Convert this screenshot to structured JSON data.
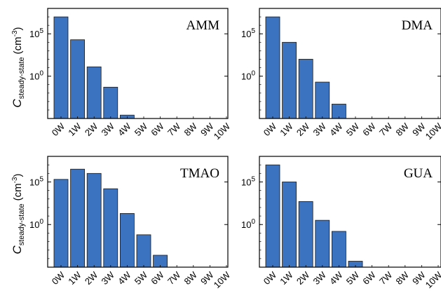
{
  "figure": {
    "ylabel_main": "C",
    "ylabel_sub": "steady-state",
    "ylabel_unit": "(cm",
    "ylabel_unit_exp": "-3",
    "ylabel_unit_close": ")"
  },
  "chart_data": [
    {
      "type": "bar",
      "panel_label": "AMM",
      "categories": [
        "0W",
        "1W",
        "2W",
        "3W",
        "4W",
        "5W",
        "6W",
        "7W",
        "8W",
        "9W",
        "10W"
      ],
      "y_scale": "log",
      "y_ticks": [
        {
          "exp": 5,
          "label_base": "10",
          "label_exp": "5"
        },
        {
          "exp": 0,
          "label_base": "10",
          "label_exp": "0"
        }
      ],
      "ylim_log10": [
        -5,
        8
      ],
      "log10_values": [
        7.0,
        4.3,
        1.1,
        -1.3,
        -4.6,
        null,
        null,
        null,
        null,
        null,
        null
      ],
      "bar_color": "#3c73c0"
    },
    {
      "type": "bar",
      "panel_label": "DMA",
      "categories": [
        "0W",
        "1W",
        "2W",
        "3W",
        "4W",
        "5W",
        "6W",
        "7W",
        "8W",
        "9W",
        "10W"
      ],
      "y_scale": "log",
      "y_ticks": [
        {
          "exp": 5,
          "label_base": "10",
          "label_exp": "5"
        },
        {
          "exp": 0,
          "label_base": "10",
          "label_exp": "0"
        }
      ],
      "ylim_log10": [
        -5,
        8
      ],
      "log10_values": [
        7.0,
        4.0,
        2.0,
        -0.7,
        -3.3,
        null,
        null,
        null,
        null,
        null,
        null
      ],
      "bar_color": "#3c73c0"
    },
    {
      "type": "bar",
      "panel_label": "TMAO",
      "categories": [
        "0W",
        "1W",
        "2W",
        "3W",
        "4W",
        "5W",
        "6W",
        "7W",
        "8W",
        "9W",
        "10W"
      ],
      "y_scale": "log",
      "y_ticks": [
        {
          "exp": 5,
          "label_base": "10",
          "label_exp": "5"
        },
        {
          "exp": 0,
          "label_base": "10",
          "label_exp": "0"
        }
      ],
      "ylim_log10": [
        -5,
        8
      ],
      "log10_values": [
        5.3,
        6.5,
        6.0,
        4.2,
        1.3,
        -1.2,
        -3.6,
        null,
        null,
        null,
        null
      ],
      "bar_color": "#3c73c0"
    },
    {
      "type": "bar",
      "panel_label": "GUA",
      "categories": [
        "0W",
        "1W",
        "2W",
        "3W",
        "4W",
        "5W",
        "6W",
        "7W",
        "8W",
        "9W",
        "10W"
      ],
      "y_scale": "log",
      "y_ticks": [
        {
          "exp": 5,
          "label_base": "10",
          "label_exp": "5"
        },
        {
          "exp": 0,
          "label_base": "10",
          "label_exp": "0"
        }
      ],
      "ylim_log10": [
        -5,
        8
      ],
      "log10_values": [
        7.0,
        5.0,
        2.7,
        0.5,
        -0.8,
        -4.3,
        null,
        null,
        null,
        null,
        null
      ],
      "bar_color": "#3c73c0"
    }
  ]
}
